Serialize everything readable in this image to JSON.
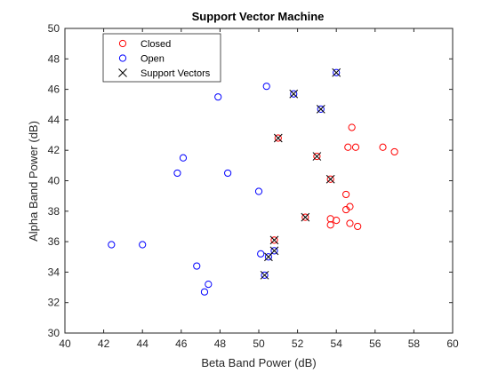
{
  "chart_data": {
    "type": "scatter",
    "title": "Support Vector Machine",
    "xlabel": "Beta Band Power (dB)",
    "ylabel": "Alpha Band Power (dB)",
    "xlim": [
      40,
      60
    ],
    "ylim": [
      30,
      50
    ],
    "xticks": [
      40,
      42,
      44,
      46,
      48,
      50,
      52,
      54,
      56,
      58,
      60
    ],
    "yticks": [
      30,
      32,
      34,
      36,
      38,
      40,
      42,
      44,
      46,
      48,
      50
    ],
    "grid": false,
    "legend_position": "top-left",
    "series": [
      {
        "name": "Closed",
        "marker": "circle",
        "color": "#ff0000",
        "points": [
          [
            50.8,
            36.1
          ],
          [
            51.0,
            42.8
          ],
          [
            52.4,
            37.6
          ],
          [
            53.0,
            41.6
          ],
          [
            53.7,
            40.1
          ],
          [
            53.7,
            37.5
          ],
          [
            53.7,
            37.1
          ],
          [
            54.0,
            37.4
          ],
          [
            54.5,
            39.1
          ],
          [
            54.5,
            38.1
          ],
          [
            54.6,
            42.2
          ],
          [
            54.7,
            38.3
          ],
          [
            54.7,
            37.2
          ],
          [
            54.8,
            43.5
          ],
          [
            55.0,
            42.2
          ],
          [
            55.1,
            37.0
          ],
          [
            56.4,
            42.2
          ],
          [
            57.0,
            41.9
          ]
        ]
      },
      {
        "name": "Open",
        "marker": "circle",
        "color": "#0000ff",
        "points": [
          [
            42.4,
            35.8
          ],
          [
            44.0,
            35.8
          ],
          [
            45.8,
            40.5
          ],
          [
            46.1,
            41.5
          ],
          [
            46.8,
            34.4
          ],
          [
            47.2,
            32.7
          ],
          [
            47.4,
            33.2
          ],
          [
            47.9,
            45.5
          ],
          [
            48.4,
            40.5
          ],
          [
            50.0,
            39.3
          ],
          [
            50.1,
            35.2
          ],
          [
            50.3,
            33.8
          ],
          [
            50.4,
            46.2
          ],
          [
            50.5,
            35.0
          ],
          [
            50.8,
            35.4
          ],
          [
            51.8,
            45.7
          ],
          [
            53.2,
            44.7
          ],
          [
            54.0,
            47.1
          ]
        ]
      },
      {
        "name": "Support Vectors",
        "marker": "x",
        "color": "#000000",
        "points": [
          [
            50.3,
            33.8
          ],
          [
            50.5,
            35.0
          ],
          [
            50.8,
            35.4
          ],
          [
            50.8,
            36.1
          ],
          [
            51.0,
            42.8
          ],
          [
            51.8,
            45.7
          ],
          [
            52.4,
            37.6
          ],
          [
            53.0,
            41.6
          ],
          [
            53.2,
            44.7
          ],
          [
            53.7,
            40.1
          ],
          [
            54.0,
            47.1
          ]
        ]
      }
    ]
  }
}
